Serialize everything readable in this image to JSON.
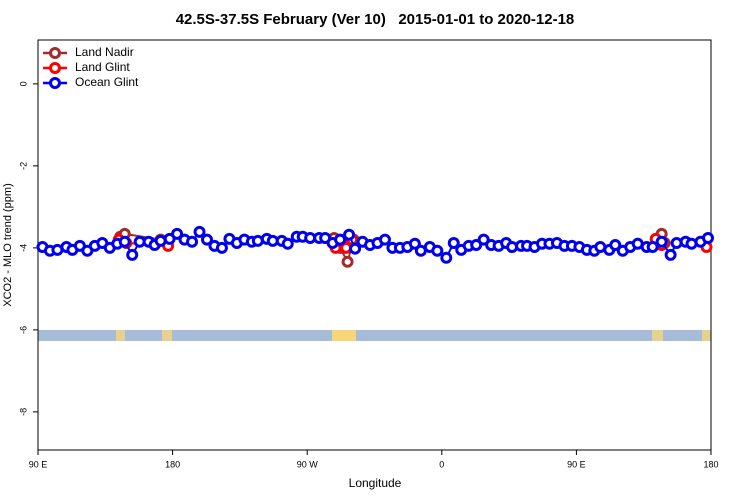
{
  "chart_data": {
    "type": "line",
    "title": "42.5S-37.5S February (Ver 10)   2015-01-01 to 2020-12-18",
    "xlabel": "Longitude",
    "ylabel": "XCO2 - MLO trend (ppm)",
    "xlim": [
      90,
      540
    ],
    "ylim": [
      -8.93,
      1.07
    ],
    "xticks": [
      {
        "value": 90,
        "label": "90 E"
      },
      180,
      {
        "value": 270,
        "label": "90 W"
      },
      {
        "value": 360,
        "label": "0"
      },
      {
        "value": 450,
        "label": "90 E"
      },
      {
        "value": 540,
        "label": "180"
      }
    ],
    "yticks": [
      -8,
      -6,
      -4,
      -2,
      0
    ],
    "legend": "top-left",
    "series": [
      {
        "name": "Land Nadir",
        "color": "#a52a2a",
        "x": [
          145,
          148,
          172,
          null,
          288,
          292,
          297,
          301,
          null,
          507,
          509
        ],
        "values": [
          -3.73,
          -3.66,
          -3.8,
          null,
          -3.76,
          -4.0,
          -4.34,
          -3.8,
          null,
          -3.66,
          -3.88
        ]
      },
      {
        "name": "Land Glint",
        "color": "#ff0000",
        "x": [
          144,
          149,
          177,
          null,
          289,
          293,
          296,
          300,
          null,
          503,
          507,
          null,
          537
        ],
        "values": [
          -3.8,
          -3.88,
          -3.95,
          null,
          -4.0,
          -3.85,
          -4.0,
          -3.8,
          null,
          -3.78,
          -3.93,
          null,
          -3.98
        ]
      },
      {
        "name": "Ocean Glint",
        "color": "#0000ee",
        "x": [
          93,
          98,
          103,
          109,
          113,
          118,
          123,
          128,
          133,
          138,
          143,
          148,
          153,
          158,
          164,
          168,
          172,
          178,
          183,
          188,
          193,
          198,
          203,
          208,
          213,
          218,
          223,
          228,
          233,
          237,
          243,
          247,
          253,
          257,
          263,
          267,
          272,
          278,
          282,
          287,
          292,
          298,
          302,
          307,
          312,
          317,
          322,
          327,
          332,
          337,
          342,
          346,
          352,
          357,
          363,
          368,
          373,
          378,
          383,
          388,
          393,
          398,
          403,
          407,
          413,
          417,
          422,
          427,
          432,
          437,
          442,
          447,
          452,
          457,
          462,
          466,
          472,
          476,
          481,
          486,
          491,
          497,
          501,
          507,
          513,
          517,
          523,
          527,
          533,
          538
        ],
        "values": [
          -3.98,
          -4.07,
          -4.05,
          -3.98,
          -4.05,
          -3.95,
          -4.07,
          -3.95,
          -3.88,
          -4.0,
          -3.9,
          -3.85,
          -4.17,
          -3.85,
          -3.85,
          -3.93,
          -3.83,
          -3.78,
          -3.66,
          -3.8,
          -3.85,
          -3.61,
          -3.8,
          -3.95,
          -4.0,
          -3.78,
          -3.88,
          -3.8,
          -3.85,
          -3.83,
          -3.78,
          -3.83,
          -3.83,
          -3.9,
          -3.73,
          -3.73,
          -3.76,
          -3.76,
          -3.76,
          -3.88,
          -3.8,
          -3.68,
          -4.02,
          -3.85,
          -3.93,
          -3.88,
          -3.8,
          -4.0,
          -4.0,
          -3.98,
          -3.9,
          -4.07,
          -3.98,
          -4.07,
          -4.24,
          -3.88,
          -4.05,
          -3.95,
          -3.93,
          -3.8,
          -3.93,
          -3.95,
          -3.88,
          -3.98,
          -3.95,
          -3.95,
          -3.98,
          -3.9,
          -3.9,
          -3.88,
          -3.95,
          -3.95,
          -3.98,
          -4.05,
          -4.07,
          -3.98,
          -4.05,
          -3.93,
          -4.07,
          -3.98,
          -3.9,
          -3.98,
          -3.98,
          -3.85,
          -4.17,
          -3.88,
          -3.85,
          -3.9,
          -3.85,
          -3.76
        ]
      }
    ]
  }
}
